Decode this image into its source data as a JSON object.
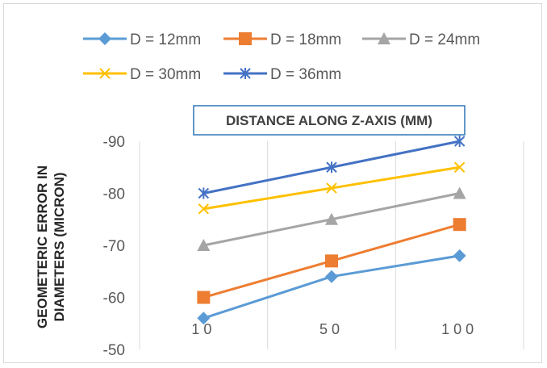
{
  "chart_data": {
    "type": "line",
    "title": "DISTANCE ALONG Z-AXIS (MM)",
    "xlabel": "",
    "ylabel_lines": [
      "GEOMETERIC ERROR IN",
      "DIAMETERS (MICRON)"
    ],
    "categories": [
      "10",
      "50",
      "100"
    ],
    "yticks": [
      "-90",
      "-80",
      "-70",
      "-60",
      "-50"
    ],
    "ylim": [
      -90,
      -50
    ],
    "y_axis_reversed": true,
    "grid": "vertical",
    "legend_position": "top",
    "series": [
      {
        "name": "D = 12mm",
        "values": [
          -56,
          -64,
          -68
        ],
        "color": "#5b9bd5",
        "marker": "diamond"
      },
      {
        "name": "D = 18mm",
        "values": [
          -60,
          -67,
          -74
        ],
        "color": "#ed7d31",
        "marker": "square"
      },
      {
        "name": "D = 24mm",
        "values": [
          -70,
          -75,
          -80
        ],
        "color": "#a5a5a5",
        "marker": "triangle"
      },
      {
        "name": "D = 30mm",
        "values": [
          -77,
          -81,
          -85
        ],
        "color": "#ffc000",
        "marker": "x"
      },
      {
        "name": "D = 36mm",
        "values": [
          -80,
          -85,
          -90
        ],
        "color": "#4472c4",
        "marker": "star"
      }
    ]
  }
}
